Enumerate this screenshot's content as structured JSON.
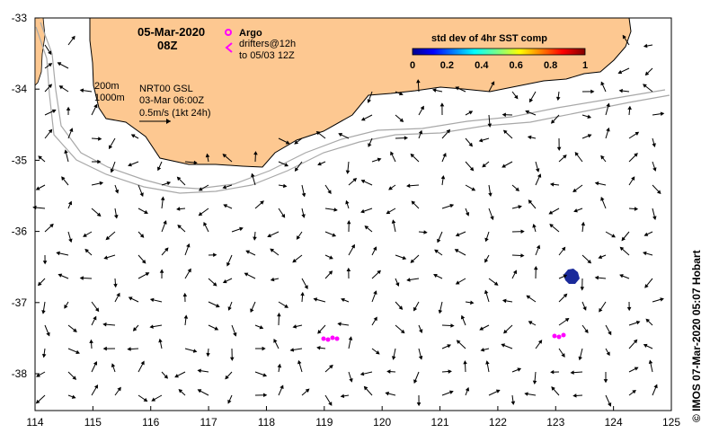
{
  "map": {
    "date": "05-Mar-2020",
    "time": "08Z",
    "legend_argo": "Argo",
    "legend_drifters_line1": "drifters@12h",
    "legend_drifters_line2": "to 05/03 12Z",
    "depth_200": "200m",
    "depth_1000": "1000m",
    "product": "NRT00 GSL",
    "product_date": "03-Mar 06:00Z",
    "scale_label": "0.5m/s (1kt 24h)",
    "colorbar_title": "std dev of 4hr SST comp",
    "colorbar_ticks": [
      "0",
      "0.2",
      "0.4",
      "0.6",
      "0.8",
      "1"
    ],
    "credit": "© IMOS 07-Mar-2020 05:07 Hobart",
    "lon_ticks": [
      "114",
      "115",
      "116",
      "117",
      "118",
      "119",
      "120",
      "121",
      "122",
      "123",
      "124",
      "125"
    ],
    "lat_ticks": [
      "-33",
      "-34",
      "-35",
      "-36",
      "-37",
      "-38"
    ],
    "colors": {
      "land": "#fdc891",
      "argo": "#ff00ff",
      "isobath": "#a8a8a8",
      "sst_patch": "#1a2a9a"
    }
  }
}
